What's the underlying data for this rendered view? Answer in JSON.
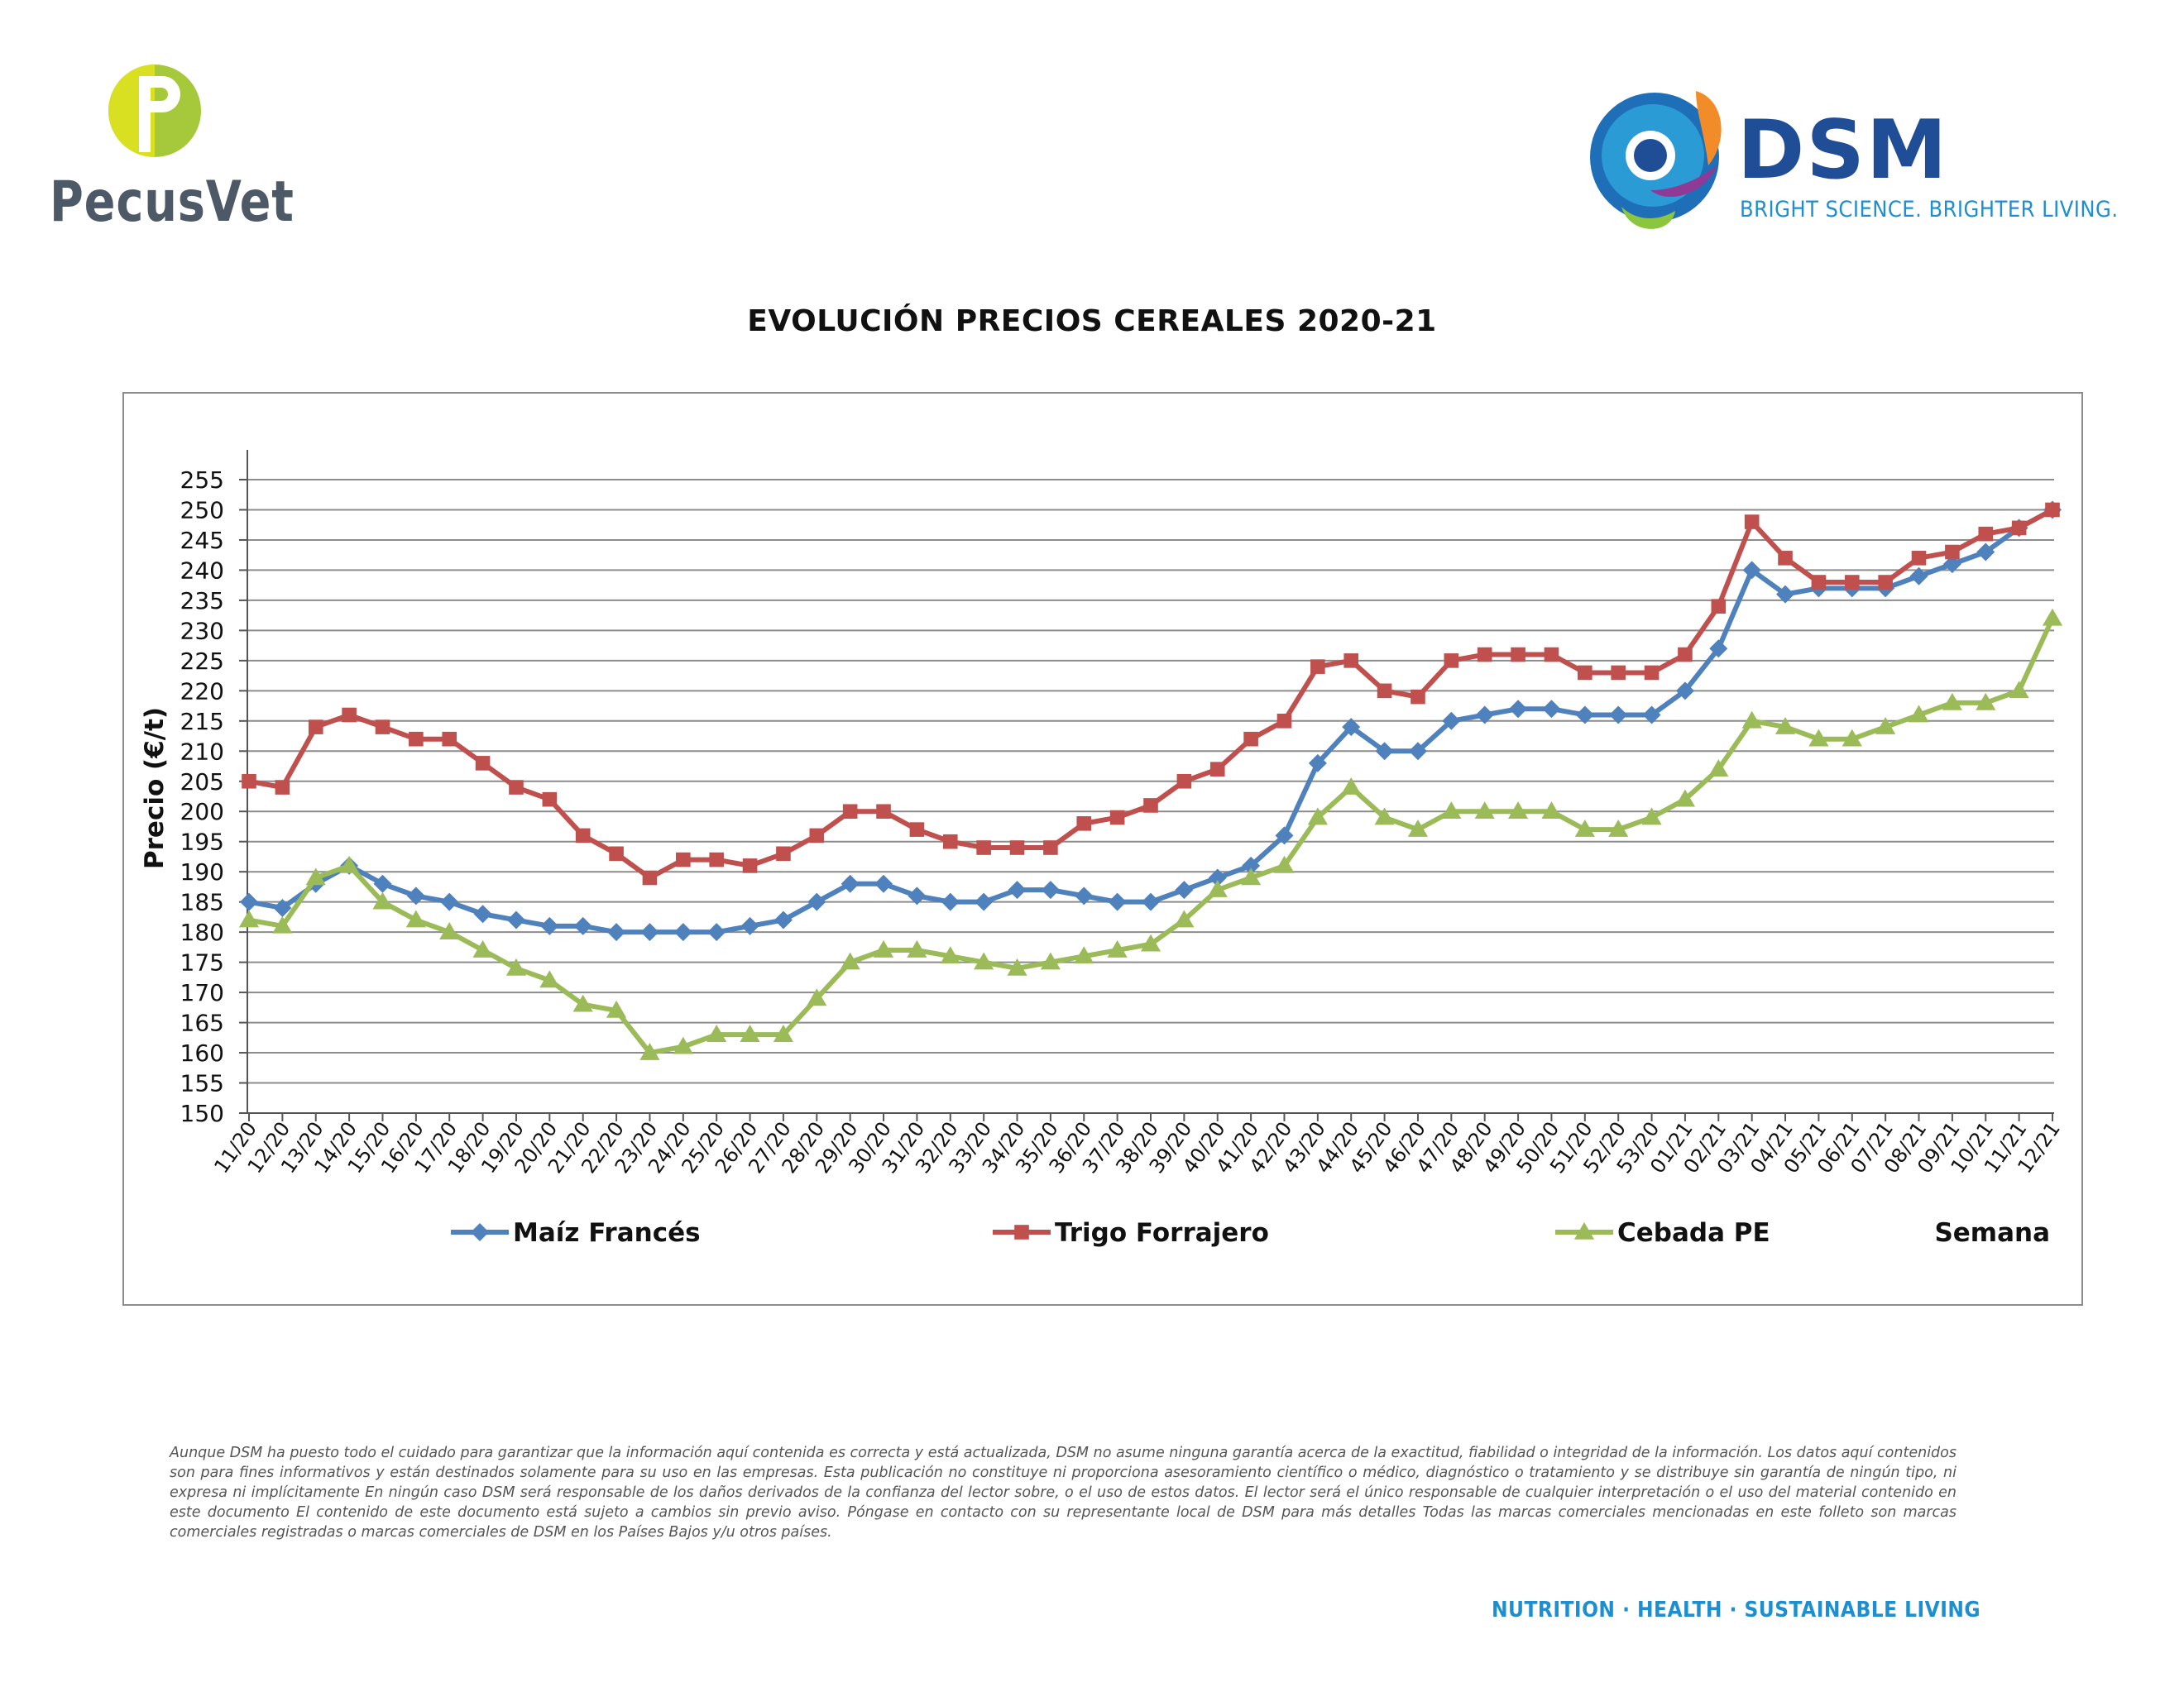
{
  "branding": {
    "pecusvet_name": "PecusVet",
    "dsm_name": "DSM",
    "dsm_tagline": "BRIGHT SCIENCE. BRIGHTER LIVING."
  },
  "colors": {
    "maiz": "#4f81bd",
    "trigo": "#c0504d",
    "cebada": "#9bbb59",
    "grid": "#8c8c8c",
    "dsm_blue": "#1f4e96",
    "dsm_light_blue": "#1d8fd0",
    "pecusvet_green": "#a5c93a",
    "pecusvet_gray": "#4d5966"
  },
  "chart_data": {
    "type": "line",
    "title": "EVOLUCIÓN PRECIOS CEREALES 2020-21",
    "ylabel": "Precio (€/t)",
    "xlabel": "Semana",
    "ylim": [
      150,
      255
    ],
    "ytick_step": 5,
    "grid": true,
    "legend_position": "bottom",
    "categories": [
      "11/20",
      "12/20",
      "13/20",
      "14/20",
      "15/20",
      "16/20",
      "17/20",
      "18/20",
      "19/20",
      "20/20",
      "21/20",
      "22/20",
      "23/20",
      "24/20",
      "25/20",
      "26/20",
      "27/20",
      "28/20",
      "29/20",
      "30/20",
      "31/20",
      "32/20",
      "33/20",
      "34/20",
      "35/20",
      "36/20",
      "37/20",
      "38/20",
      "39/20",
      "40/20",
      "41/20",
      "42/20",
      "43/20",
      "44/20",
      "45/20",
      "46/20",
      "47/20",
      "48/20",
      "49/20",
      "50/20",
      "51/20",
      "52/20",
      "53/20",
      "01/21",
      "02/21",
      "03/21",
      "04/21",
      "05/21",
      "06/21",
      "07/21",
      "08/21",
      "09/21",
      "10/21",
      "11/21",
      "12/21"
    ],
    "series": [
      {
        "name": "Maíz Francés",
        "color": "#4f81bd",
        "marker": "diamond",
        "values": [
          185,
          184,
          188,
          191,
          188,
          186,
          185,
          183,
          182,
          181,
          181,
          180,
          180,
          180,
          180,
          181,
          182,
          185,
          188,
          188,
          186,
          185,
          185,
          187,
          187,
          186,
          185,
          185,
          187,
          189,
          191,
          196,
          208,
          214,
          210,
          210,
          215,
          216,
          217,
          217,
          216,
          216,
          216,
          220,
          227,
          240,
          236,
          237,
          237,
          237,
          239,
          241,
          243,
          247,
          250
        ]
      },
      {
        "name": "Trigo Forrajero",
        "color": "#c0504d",
        "marker": "square",
        "values": [
          205,
          204,
          214,
          216,
          214,
          212,
          212,
          208,
          204,
          202,
          196,
          193,
          189,
          192,
          192,
          191,
          193,
          196,
          200,
          200,
          197,
          195,
          194,
          194,
          194,
          198,
          199,
          201,
          205,
          207,
          212,
          215,
          224,
          225,
          220,
          219,
          225,
          226,
          226,
          226,
          223,
          223,
          223,
          226,
          234,
          248,
          242,
          238,
          238,
          238,
          242,
          243,
          246,
          247,
          250
        ]
      },
      {
        "name": "Cebada PE",
        "color": "#9bbb59",
        "marker": "triangle",
        "values": [
          182,
          181,
          189,
          191,
          185,
          182,
          180,
          177,
          174,
          172,
          168,
          167,
          160,
          161,
          163,
          163,
          163,
          169,
          175,
          177,
          177,
          176,
          175,
          174,
          175,
          176,
          177,
          178,
          182,
          187,
          189,
          191,
          199,
          204,
          199,
          197,
          200,
          200,
          200,
          200,
          197,
          197,
          199,
          202,
          207,
          215,
          214,
          212,
          212,
          214,
          216,
          218,
          218,
          220,
          232
        ]
      }
    ]
  },
  "disclaimer": "Aunque DSM ha puesto todo el cuidado para garantizar que la información aquí contenida es correcta y está actualizada, DSM no asume ninguna garantía acerca de la exactitud, fiabilidad o integridad de la información. Los datos aquí contenidos son para fines informativos y están destinados solamente para su uso en las empresas. Esta publicación no constituye ni proporciona asesoramiento científico o médico, diagnóstico o tratamiento y se distribuye sin garantía de ningún tipo, ni expresa ni implícitamente En ningún caso DSM será responsable de los daños derivados de la confianza del lector sobre, o el uso de estos datos. El lector será el único responsable de cualquier interpretación o el uso del material contenido en este documento El contenido de este documento está sujeto a cambios sin previo aviso. Póngase en contacto con su representante local de DSM para más detalles Todas las marcas comerciales mencionadas en este folleto son marcas comerciales registradas o marcas comerciales de DSM en los Países Bajos y/u otros países.",
  "footer_tagline": "NUTRITION · HEALTH · SUSTAINABLE LIVING"
}
